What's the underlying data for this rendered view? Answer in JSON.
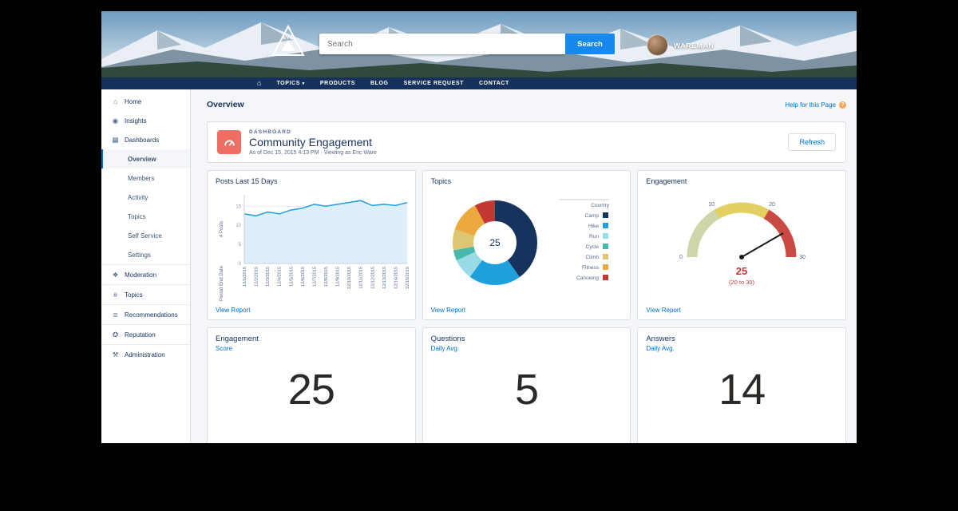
{
  "colors": {
    "accent": "#0070d2",
    "nav_bg": "#16325c",
    "dashboard_icon": "#ef6e64",
    "gauge_value_text": "#c23934",
    "card_border": "#d8dde6"
  },
  "banner": {
    "logo_text": "NYO",
    "search_placeholder": "Search",
    "search_button_label": "Search",
    "user_name": "WAREMAN"
  },
  "nav": {
    "home_glyph": "⌂",
    "items": [
      {
        "label": "TOPICS",
        "caret": true
      },
      {
        "label": "PRODUCTS"
      },
      {
        "label": "BLOG"
      },
      {
        "label": "SERVICE REQUEST"
      },
      {
        "label": "CONTACT"
      }
    ]
  },
  "sidebar": {
    "icon_glyphs": {
      "home": "⌂",
      "insights": "◉",
      "dashboards": "▦",
      "moderation": "❖",
      "topics": "#",
      "recommendations": "≣",
      "reputation": "✪",
      "administration": "⚒"
    },
    "items": [
      {
        "label": "Home",
        "icon": "home"
      },
      {
        "label": "Insights",
        "icon": "insights"
      },
      {
        "label": "Dashboards",
        "icon": "dashboards"
      },
      {
        "label": "Overview",
        "indent": true,
        "selected": true
      },
      {
        "label": "Members",
        "indent": true
      },
      {
        "label": "Activity",
        "indent": true
      },
      {
        "label": "Topics",
        "indent": true
      },
      {
        "label": "Self Service",
        "indent": true
      },
      {
        "label": "Settings",
        "indent": true
      },
      {
        "label": "Moderation",
        "icon": "moderation",
        "divider": true
      },
      {
        "label": "Topics",
        "icon": "topics",
        "divider": true
      },
      {
        "label": "Recommendations",
        "icon": "recommendations",
        "divider": true
      },
      {
        "label": "Reputation",
        "icon": "reputation",
        "divider": true
      },
      {
        "label": "Administration",
        "icon": "administration",
        "divider": true
      }
    ]
  },
  "page": {
    "title": "Overview",
    "help_link": "Help for this Page"
  },
  "dashboard": {
    "eyebrow": "DASHBOARD",
    "title": "Community Engagement",
    "meta": "As of Dec 15, 2015 4:13 PM · Viewing as Eric Ware",
    "refresh_label": "Refresh"
  },
  "chart_data": [
    {
      "type": "area",
      "title": "Posts Last 15 Days",
      "link": "View Report",
      "xlabel": "Period End Date",
      "ylabel": "# Posts",
      "x": [
        "12/1/2015",
        "12/2/2015",
        "12/3/2015",
        "12/4/2015",
        "12/5/2015",
        "12/6/2015",
        "12/7/2015",
        "12/8/2015",
        "12/9/2015",
        "12/10/2015",
        "12/11/2015",
        "12/12/2015",
        "12/13/2015",
        "12/14/2015",
        "12/15/2015"
      ],
      "values": [
        13,
        12.5,
        13.5,
        13,
        14,
        14.5,
        15.5,
        15,
        15.5,
        16,
        16.5,
        15.2,
        15.5,
        15.2,
        16
      ],
      "yticks": [
        0,
        5,
        10,
        15
      ],
      "ylim": [
        0,
        18
      ],
      "line_color": "#1f9fdb",
      "fill_color": "#ddeffa",
      "grid": true
    },
    {
      "type": "pie",
      "title": "Topics",
      "link": "View Report",
      "legend_title": "Country",
      "legend_position": "right",
      "labels": [
        "Camp",
        "Hike",
        "Run",
        "Cycle",
        "Climb",
        "Fitness",
        "Canoeing"
      ],
      "values": [
        10,
        5,
        2,
        1,
        2,
        3,
        2
      ],
      "colors": [
        "#16335d",
        "#1f9fdb",
        "#9adbe8",
        "#47b8a9",
        "#dcc673",
        "#eda93d",
        "#c23934"
      ],
      "center_label": "25"
    },
    {
      "type": "gauge",
      "title": "Engagement",
      "link": "View Report",
      "min": 0,
      "max": 30,
      "value": 25,
      "ticks": [
        0,
        10,
        20,
        30
      ],
      "bands": [
        {
          "from": 0,
          "to": 10,
          "color": "#ccd6a8"
        },
        {
          "from": 10,
          "to": 20,
          "color": "#e4cf63"
        },
        {
          "from": 20,
          "to": 30,
          "color": "#c94a42"
        }
      ],
      "value_label": "25",
      "range_label": "(20 to 30)",
      "value_color": "#c23934"
    }
  ],
  "metrics": [
    {
      "title": "Engagement",
      "subtitle": "Score",
      "value": "25"
    },
    {
      "title": "Questions",
      "subtitle": "Daily Avg.",
      "value": "5"
    },
    {
      "title": "Answers",
      "subtitle": "Daily Avg.",
      "value": "14"
    }
  ]
}
